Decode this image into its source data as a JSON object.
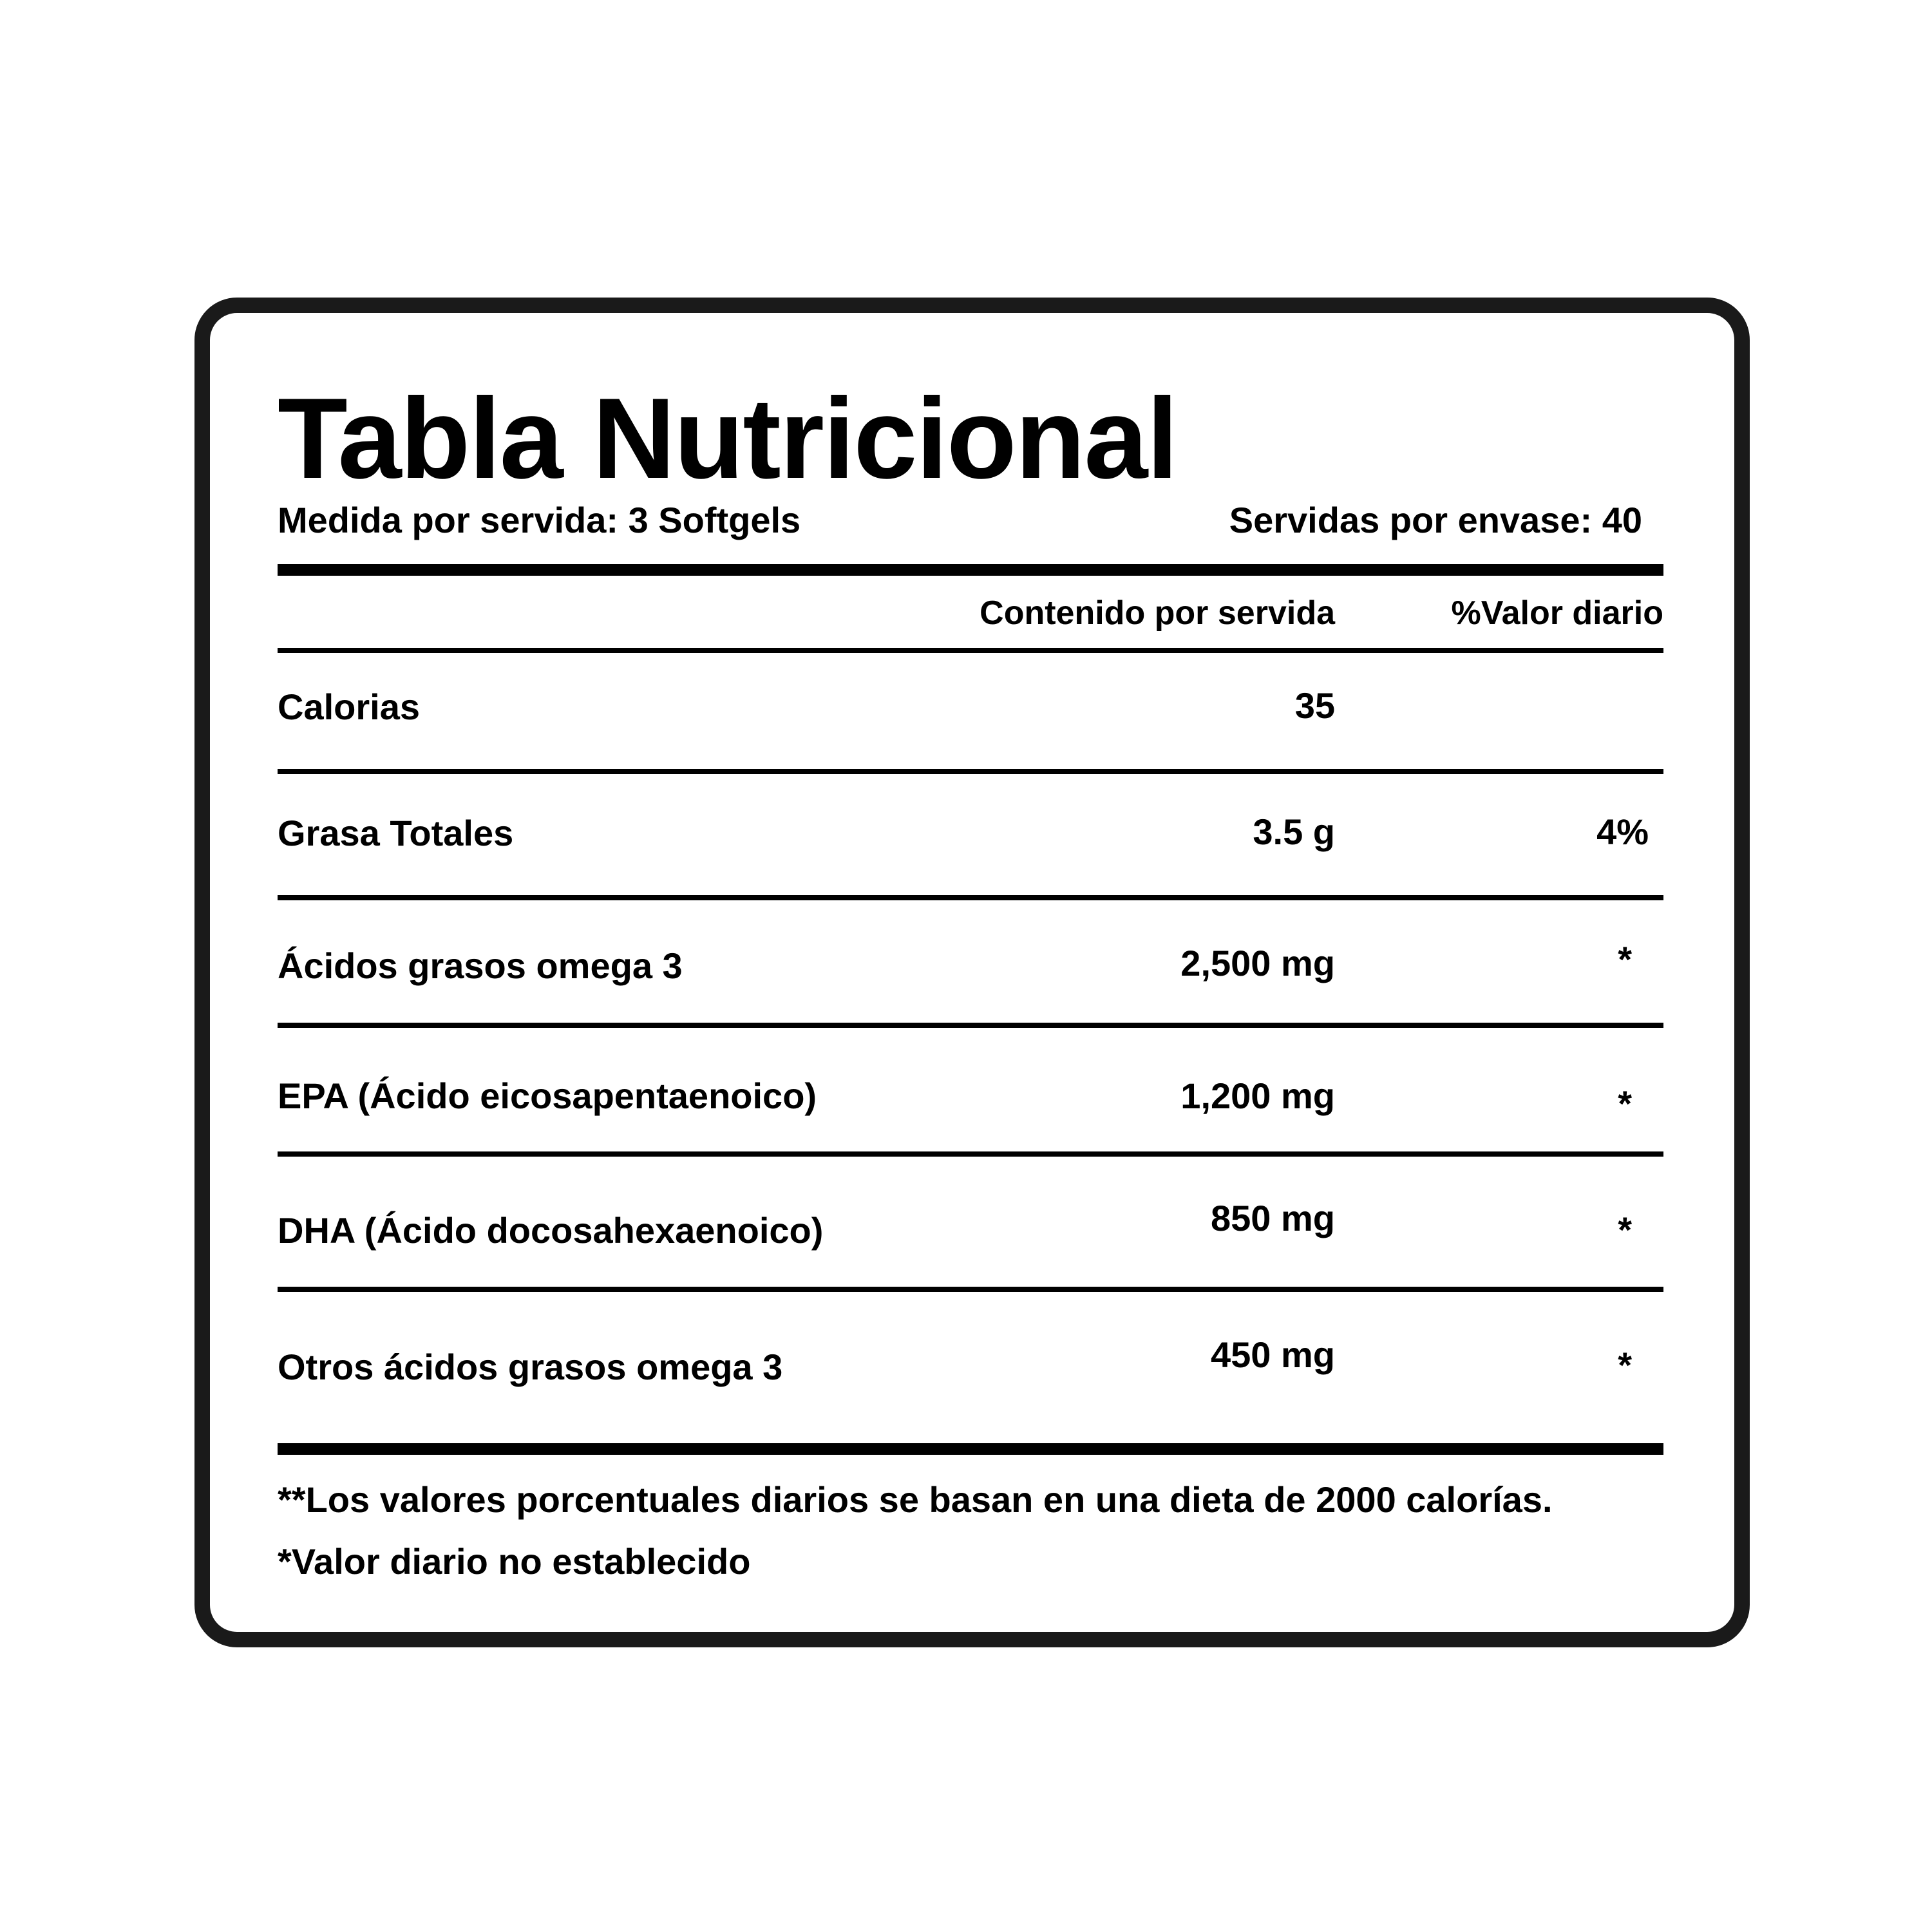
{
  "title": "Tabla Nutricional",
  "serving_size": "Medida por servida: 3 Softgels",
  "servings_per_container": "Servidas por envase: 40",
  "columns": {
    "amount": "Contenido por servida",
    "daily_value": "%Valor diario"
  },
  "rows": [
    {
      "label": "Calorias",
      "amount": "35",
      "daily_value": ""
    },
    {
      "label": "Grasa Totales",
      "amount": "3.5 g",
      "daily_value": "4%"
    },
    {
      "label": "Ácidos grasos omega 3",
      "amount": "2,500 mg",
      "daily_value": "*"
    },
    {
      "label": "EPA (Ácido eicosapentaenoico)",
      "amount": "1,200 mg",
      "daily_value": "*"
    },
    {
      "label": "DHA (Ácido docosahexaenoico)",
      "amount": "850 mg",
      "daily_value": "*"
    },
    {
      "label": "Otros ácidos grasos omega 3",
      "amount": "450 mg",
      "daily_value": "*"
    }
  ],
  "footnotes": [
    "**Los valores porcentuales diarios se basan en una dieta de 2000 calorías.",
    "*Valor diario no establecido"
  ]
}
